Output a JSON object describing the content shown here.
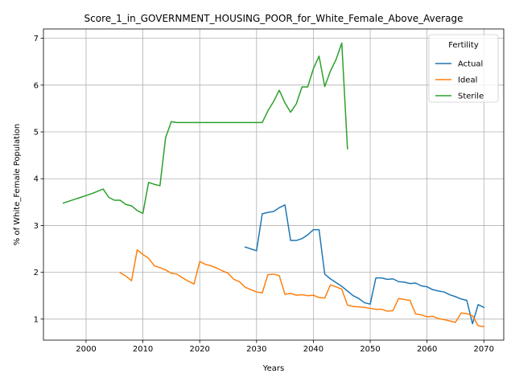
{
  "chart_data": {
    "type": "line",
    "title": "Score_1_in_GOVERNMENT_HOUSING_POOR_for_White_Female_Above_Average",
    "xlabel": "Years",
    "ylabel": "% of White_Female Population",
    "xlim": [
      1992.5,
      2073.5
    ],
    "ylim": [
      0.55,
      7.2
    ],
    "xticks": [
      2000,
      2010,
      2020,
      2030,
      2040,
      2050,
      2060,
      2070
    ],
    "yticks": [
      1,
      2,
      3,
      4,
      5,
      6,
      7
    ],
    "grid": true,
    "legend": {
      "title": "Fertility",
      "placement": "top-right"
    },
    "series": [
      {
        "name": "Actual",
        "color": "#1f77b4",
        "points": [
          [
            2028,
            2.54
          ],
          [
            2029,
            2.5
          ],
          [
            2030,
            2.46
          ],
          [
            2031,
            3.25
          ],
          [
            2032,
            3.28
          ],
          [
            2033,
            3.3
          ],
          [
            2034,
            3.38
          ],
          [
            2035,
            3.44
          ],
          [
            2036,
            2.68
          ],
          [
            2037,
            2.68
          ],
          [
            2038,
            2.72
          ],
          [
            2039,
            2.8
          ],
          [
            2040,
            2.91
          ],
          [
            2041,
            2.91
          ],
          [
            2042,
            1.96
          ],
          [
            2043,
            1.86
          ],
          [
            2044,
            1.78
          ],
          [
            2045,
            1.7
          ],
          [
            2046,
            1.6
          ],
          [
            2047,
            1.5
          ],
          [
            2048,
            1.44
          ],
          [
            2049,
            1.35
          ],
          [
            2050,
            1.32
          ],
          [
            2051,
            1.88
          ],
          [
            2052,
            1.88
          ],
          [
            2053,
            1.85
          ],
          [
            2054,
            1.86
          ],
          [
            2055,
            1.8
          ],
          [
            2056,
            1.79
          ],
          [
            2057,
            1.76
          ],
          [
            2058,
            1.77
          ],
          [
            2059,
            1.71
          ],
          [
            2060,
            1.69
          ],
          [
            2061,
            1.63
          ],
          [
            2062,
            1.6
          ],
          [
            2063,
            1.58
          ],
          [
            2064,
            1.52
          ],
          [
            2065,
            1.48
          ],
          [
            2066,
            1.43
          ],
          [
            2067,
            1.4
          ],
          [
            2068,
            0.9
          ],
          [
            2069,
            1.31
          ],
          [
            2070,
            1.25
          ]
        ]
      },
      {
        "name": "Ideal",
        "color": "#ff7f0e",
        "points": [
          [
            2006,
            1.99
          ],
          [
            2007,
            1.92
          ],
          [
            2008,
            1.82
          ],
          [
            2009,
            2.48
          ],
          [
            2010,
            2.38
          ],
          [
            2011,
            2.3
          ],
          [
            2012,
            2.14
          ],
          [
            2013,
            2.1
          ],
          [
            2014,
            2.05
          ],
          [
            2015,
            1.98
          ],
          [
            2016,
            1.96
          ],
          [
            2017,
            1.88
          ],
          [
            2018,
            1.81
          ],
          [
            2019,
            1.75
          ],
          [
            2020,
            2.23
          ],
          [
            2021,
            2.17
          ],
          [
            2022,
            2.14
          ],
          [
            2023,
            2.09
          ],
          [
            2024,
            2.03
          ],
          [
            2025,
            1.98
          ],
          [
            2026,
            1.85
          ],
          [
            2027,
            1.8
          ],
          [
            2028,
            1.68
          ],
          [
            2029,
            1.63
          ],
          [
            2030,
            1.58
          ],
          [
            2031,
            1.56
          ],
          [
            2032,
            1.95
          ],
          [
            2033,
            1.96
          ],
          [
            2034,
            1.93
          ],
          [
            2035,
            1.53
          ],
          [
            2036,
            1.55
          ],
          [
            2037,
            1.51
          ],
          [
            2038,
            1.52
          ],
          [
            2039,
            1.5
          ],
          [
            2040,
            1.51
          ],
          [
            2041,
            1.46
          ],
          [
            2042,
            1.45
          ],
          [
            2043,
            1.73
          ],
          [
            2044,
            1.69
          ],
          [
            2045,
            1.64
          ],
          [
            2046,
            1.3
          ],
          [
            2047,
            1.27
          ],
          [
            2048,
            1.26
          ],
          [
            2049,
            1.25
          ],
          [
            2050,
            1.23
          ],
          [
            2051,
            1.21
          ],
          [
            2052,
            1.21
          ],
          [
            2053,
            1.17
          ],
          [
            2054,
            1.18
          ],
          [
            2055,
            1.44
          ],
          [
            2056,
            1.42
          ],
          [
            2057,
            1.4
          ],
          [
            2058,
            1.11
          ],
          [
            2059,
            1.09
          ],
          [
            2060,
            1.05
          ],
          [
            2061,
            1.06
          ],
          [
            2062,
            1.01
          ],
          [
            2063,
            0.99
          ],
          [
            2064,
            0.96
          ],
          [
            2065,
            0.93
          ],
          [
            2066,
            1.13
          ],
          [
            2067,
            1.12
          ],
          [
            2068,
            1.07
          ],
          [
            2069,
            0.86
          ],
          [
            2070,
            0.84
          ]
        ]
      },
      {
        "name": "Sterile",
        "color": "#2ca02c",
        "points": [
          [
            1996,
            3.48
          ],
          [
            1997,
            3.52
          ],
          [
            1998,
            3.56
          ],
          [
            1999,
            3.6
          ],
          [
            2000,
            3.64
          ],
          [
            2001,
            3.68
          ],
          [
            2002,
            3.73
          ],
          [
            2003,
            3.78
          ],
          [
            2004,
            3.6
          ],
          [
            2005,
            3.54
          ],
          [
            2006,
            3.54
          ],
          [
            2007,
            3.45
          ],
          [
            2008,
            3.42
          ],
          [
            2009,
            3.32
          ],
          [
            2010,
            3.26
          ],
          [
            2011,
            3.92
          ],
          [
            2012,
            3.88
          ],
          [
            2013,
            3.85
          ],
          [
            2014,
            4.88
          ],
          [
            2015,
            5.22
          ],
          [
            2016,
            5.2
          ],
          [
            2017,
            5.2
          ],
          [
            2020,
            5.2
          ],
          [
            2025,
            5.2
          ],
          [
            2031,
            5.2
          ],
          [
            2032,
            5.45
          ],
          [
            2033,
            5.65
          ],
          [
            2034,
            5.89
          ],
          [
            2035,
            5.62
          ],
          [
            2036,
            5.42
          ],
          [
            2037,
            5.6
          ],
          [
            2038,
            5.96
          ],
          [
            2039,
            5.96
          ],
          [
            2040,
            6.35
          ],
          [
            2041,
            6.62
          ],
          [
            2042,
            5.97
          ],
          [
            2043,
            6.3
          ],
          [
            2044,
            6.55
          ],
          [
            2045,
            6.9
          ],
          [
            2046,
            4.64
          ]
        ]
      }
    ]
  }
}
